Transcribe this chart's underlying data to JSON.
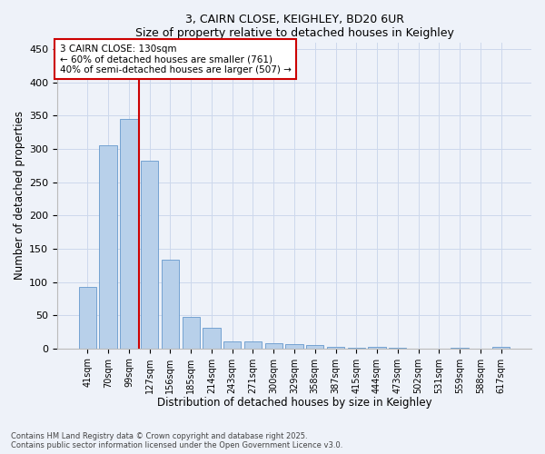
{
  "title1": "3, CAIRN CLOSE, KEIGHLEY, BD20 6UR",
  "title2": "Size of property relative to detached houses in Keighley",
  "xlabel": "Distribution of detached houses by size in Keighley",
  "ylabel": "Number of detached properties",
  "categories": [
    "41sqm",
    "70sqm",
    "99sqm",
    "127sqm",
    "156sqm",
    "185sqm",
    "214sqm",
    "243sqm",
    "271sqm",
    "300sqm",
    "329sqm",
    "358sqm",
    "387sqm",
    "415sqm",
    "444sqm",
    "473sqm",
    "502sqm",
    "531sqm",
    "559sqm",
    "588sqm",
    "617sqm"
  ],
  "values": [
    93,
    305,
    345,
    283,
    133,
    47,
    31,
    10,
    11,
    8,
    7,
    5,
    3,
    1,
    2,
    1,
    0,
    0,
    1,
    0,
    3
  ],
  "bar_color": "#b8d0ea",
  "bar_edge_color": "#6699cc",
  "vline_x_index": 3,
  "vline_color": "#cc0000",
  "annotation_text": "3 CAIRN CLOSE: 130sqm\n← 60% of detached houses are smaller (761)\n40% of semi-detached houses are larger (507) →",
  "annotation_box_facecolor": "#ffffff",
  "annotation_box_edgecolor": "#cc0000",
  "ylim": [
    0,
    460
  ],
  "yticks": [
    0,
    50,
    100,
    150,
    200,
    250,
    300,
    350,
    400,
    450
  ],
  "grid_color": "#ccd8ec",
  "footer_text": "Contains HM Land Registry data © Crown copyright and database right 2025.\nContains public sector information licensed under the Open Government Licence v3.0.",
  "bg_color": "#eef2f9",
  "fig_width": 6.0,
  "fig_height": 5.0,
  "dpi": 100
}
